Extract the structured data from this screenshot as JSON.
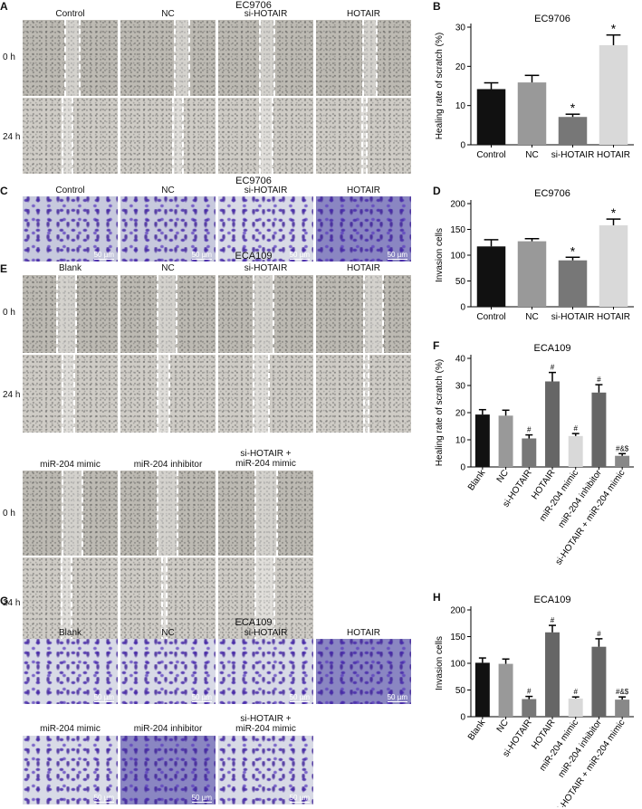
{
  "panel_letters": {
    "A": "A",
    "B": "B",
    "C": "C",
    "D": "D",
    "E": "E",
    "F": "F",
    "G": "G",
    "H": "H"
  },
  "panelA": {
    "title": "EC9706",
    "cols": [
      "Control",
      "NC",
      "si-HOTAIR",
      "HOTAIR"
    ],
    "rows": [
      "0 h",
      "24 h"
    ]
  },
  "panelC": {
    "title": "EC9706",
    "cols": [
      "Control",
      "NC",
      "si-HOTAIR",
      "HOTAIR"
    ],
    "scale_bar": "50 µm"
  },
  "panelE": {
    "title": "ECA109",
    "cols": [
      "Blank",
      "NC",
      "si-HOTAIR",
      "HOTAIR"
    ],
    "cols2": [
      "miR-204 mimic",
      "miR-204 inhibitor",
      "si-HOTAIR +\nmiR-204 mimic"
    ],
    "rows": [
      "0 h",
      "24 h"
    ]
  },
  "panelG": {
    "title": "ECA109",
    "cols": [
      "Blank",
      "NC",
      "si-HOTAIR",
      "HOTAIR"
    ],
    "cols2": [
      "miR-204 mimic",
      "miR-204 inhibitor",
      "si-HOTAIR +\nmiR-204 mimic"
    ],
    "scale_bar": "50 µm"
  },
  "chart_data": [
    {
      "id": "B",
      "type": "bar",
      "title": "EC9706",
      "ylabel": "Healing rate of scratch (%)",
      "ylim": [
        0,
        30
      ],
      "yticks": [
        0,
        10,
        20,
        30
      ],
      "categories": [
        "Control",
        "NC",
        "si-HOTAIR",
        "HOTAIR"
      ],
      "values": [
        14.2,
        15.9,
        7.1,
        25.4
      ],
      "errors": [
        1.6,
        1.8,
        0.7,
        2.6
      ],
      "colors": [
        "#111111",
        "#999999",
        "#777777",
        "#d9d9d9"
      ],
      "annotations": [
        "",
        "",
        "*",
        "*"
      ],
      "rotate_labels": false
    },
    {
      "id": "D",
      "type": "bar",
      "title": "EC9706",
      "ylabel": "Invasion cells",
      "ylim": [
        0,
        200
      ],
      "yticks": [
        0,
        50,
        100,
        150,
        200
      ],
      "categories": [
        "Control",
        "NC",
        "si-HOTAIR",
        "HOTAIR"
      ],
      "values": [
        117,
        127,
        90,
        158
      ],
      "errors": [
        13,
        5,
        6,
        12
      ],
      "colors": [
        "#111111",
        "#999999",
        "#777777",
        "#d9d9d9"
      ],
      "annotations": [
        "",
        "",
        "*",
        "*"
      ],
      "rotate_labels": false
    },
    {
      "id": "F",
      "type": "bar",
      "title": "ECA109",
      "ylabel": "Healing rate of scratch (%)",
      "ylim": [
        0,
        40
      ],
      "yticks": [
        0,
        10,
        20,
        30,
        40
      ],
      "categories": [
        "Blank",
        "NC",
        "si-HOTAIR",
        "HOTAIR",
        "miR-204 mimic",
        "miR-204 inhibitor",
        "si-HOTAIR + miR-204 mimic"
      ],
      "values": [
        19.3,
        18.9,
        10.5,
        31.5,
        11.4,
        27.4,
        4.1
      ],
      "errors": [
        1.8,
        2.0,
        1.3,
        3.3,
        0.9,
        2.9,
        0.8
      ],
      "colors": [
        "#111111",
        "#999999",
        "#777777",
        "#666666",
        "#d9d9d9",
        "#666666",
        "#888888"
      ],
      "annotations": [
        "",
        "",
        "#",
        "#",
        "#",
        "#",
        "#&$"
      ],
      "rotate_labels": true
    },
    {
      "id": "H",
      "type": "bar",
      "title": "ECA109",
      "ylabel": "Invasion cells",
      "ylim": [
        0,
        200
      ],
      "yticks": [
        0,
        50,
        100,
        150,
        200
      ],
      "categories": [
        "Blank",
        "NC",
        "si-HOTAIR",
        "HOTAIR",
        "miR-204 mimic",
        "miR-204 inhibitor",
        "si-HOTAIR + miR-204 mimic"
      ],
      "values": [
        101,
        99,
        33,
        158,
        34,
        131,
        32
      ],
      "errors": [
        9,
        9,
        5,
        13,
        3,
        15,
        5
      ],
      "colors": [
        "#111111",
        "#999999",
        "#777777",
        "#666666",
        "#d9d9d9",
        "#666666",
        "#888888"
      ],
      "annotations": [
        "",
        "",
        "#",
        "#",
        "#",
        "#",
        "#&$"
      ],
      "rotate_labels": true
    }
  ]
}
